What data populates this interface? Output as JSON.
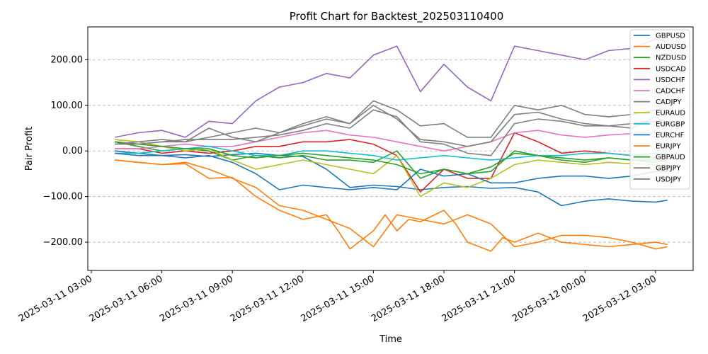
{
  "chart_data": {
    "type": "line",
    "title": "Profit Chart for Backtest_202503110400",
    "xlabel": "Time",
    "ylabel": "Pair Profit",
    "x_start": "2025-03-11 03:00",
    "x_ticks": [
      "2025-03-11 03:00",
      "2025-03-11 06:00",
      "2025-03-11 09:00",
      "2025-03-11 12:00",
      "2025-03-11 15:00",
      "2025-03-11 18:00",
      "2025-03-11 21:00",
      "2025-03-12 00:00",
      "2025-03-12 03:00"
    ],
    "x_tick_hours": [
      0,
      3,
      6,
      9,
      12,
      15,
      18,
      21,
      24
    ],
    "xlim_hours": [
      -0.15,
      25.6
    ],
    "y_ticks": [
      -200,
      -100,
      0,
      100,
      200
    ],
    "y_tick_labels": [
      "−200.00",
      "−100.00",
      "0.00",
      "100.00",
      "200.00"
    ],
    "ylim": [
      -262,
      272
    ],
    "grid": "y-dashed",
    "legend_position": "top-right",
    "series": [
      {
        "name": "GBPUSD",
        "color": "#1f77b4",
        "x": [
          1,
          2,
          3,
          4,
          5,
          6,
          7,
          8,
          9,
          10,
          11,
          12,
          13,
          14,
          15,
          16,
          17,
          18,
          19,
          20,
          21,
          22,
          23,
          24,
          24.5
        ],
        "values": [
          0,
          -5,
          -10,
          -8,
          -12,
          -8,
          -5,
          -10,
          -12,
          -40,
          -80,
          -75,
          -78,
          -85,
          -80,
          -78,
          -82,
          -80,
          -90,
          -120,
          -110,
          -105,
          -110,
          -112,
          -108
        ]
      },
      {
        "name": "AUDUSD",
        "color": "#ff7f0e",
        "x": [
          1,
          2,
          3,
          4,
          5,
          6,
          7,
          8,
          9,
          10,
          10.5,
          11,
          12,
          12.5,
          13,
          13.5,
          14,
          15,
          15.5,
          16,
          17,
          17.5,
          18,
          19,
          20,
          21,
          22,
          23,
          24,
          24.5
        ],
        "values": [
          -20,
          -25,
          -30,
          -28,
          -60,
          -58,
          -100,
          -130,
          -150,
          -140,
          -175,
          -215,
          -175,
          -140,
          -175,
          -150,
          -155,
          -130,
          -160,
          -200,
          -220,
          -190,
          -200,
          -180,
          -200,
          -205,
          -210,
          -205,
          -200,
          -205
        ]
      },
      {
        "name": "NZDUSD",
        "color": "#2ca02c",
        "x": [
          1,
          2,
          3,
          4,
          5,
          6,
          7,
          8,
          9,
          10,
          11,
          12,
          13,
          14,
          15,
          16,
          17,
          18,
          19,
          20,
          21,
          22,
          23,
          24,
          24.5
        ],
        "values": [
          20,
          10,
          0,
          5,
          0,
          -20,
          -10,
          -15,
          -10,
          -20,
          -20,
          -25,
          0,
          -60,
          -40,
          -50,
          -35,
          -5,
          -10,
          -20,
          -25,
          -15,
          -20,
          -25,
          -20
        ]
      },
      {
        "name": "USDCAD",
        "color": "#d62728",
        "x": [
          1,
          2,
          3,
          4,
          5,
          6,
          7,
          8,
          9,
          10,
          11,
          12,
          13,
          14,
          15,
          16,
          17,
          18,
          19,
          20,
          21,
          22,
          23,
          24,
          24.5
        ],
        "values": [
          5,
          5,
          -5,
          0,
          -5,
          0,
          10,
          10,
          20,
          20,
          25,
          15,
          -10,
          -90,
          -40,
          -60,
          -60,
          40,
          20,
          -5,
          0,
          -5,
          -10,
          -15,
          -10
        ]
      },
      {
        "name": "USDCHF",
        "color": "#9467bd",
        "x": [
          1,
          2,
          3,
          4,
          5,
          6,
          7,
          8,
          9,
          10,
          11,
          12,
          13,
          14,
          15,
          16,
          17,
          18,
          19,
          20,
          21,
          22,
          23,
          24,
          24.5
        ],
        "values": [
          30,
          40,
          45,
          30,
          65,
          60,
          110,
          140,
          150,
          170,
          160,
          210,
          230,
          130,
          190,
          140,
          110,
          230,
          220,
          210,
          200,
          220,
          225,
          245,
          240
        ]
      },
      {
        "name": "CADCHF",
        "color": "#e377c2",
        "x": [
          1,
          2,
          3,
          4,
          5,
          6,
          7,
          8,
          9,
          10,
          11,
          12,
          13,
          14,
          15,
          16,
          17,
          18,
          19,
          20,
          21,
          22,
          23,
          24,
          24.5
        ],
        "values": [
          5,
          5,
          10,
          15,
          10,
          10,
          20,
          30,
          40,
          45,
          35,
          30,
          20,
          10,
          0,
          10,
          20,
          40,
          45,
          35,
          30,
          35,
          38,
          40,
          40
        ]
      },
      {
        "name": "CADJPY",
        "color": "#7f7f7f",
        "x": [
          1,
          2,
          3,
          4,
          5,
          6,
          7,
          8,
          9,
          10,
          11,
          12,
          13,
          14,
          15,
          16,
          17,
          18,
          19,
          20,
          21,
          22,
          23,
          24,
          24.5
        ],
        "values": [
          20,
          15,
          20,
          20,
          50,
          30,
          20,
          40,
          60,
          75,
          60,
          110,
          90,
          55,
          60,
          30,
          30,
          100,
          90,
          100,
          80,
          75,
          80,
          90,
          95
        ]
      },
      {
        "name": "EURAUD",
        "color": "#bcbd22",
        "x": [
          1,
          2,
          3,
          4,
          5,
          6,
          7,
          8,
          9,
          10,
          11,
          12,
          13,
          14,
          15,
          16,
          17,
          18,
          19,
          20,
          21,
          22,
          23,
          24,
          24.5
        ],
        "values": [
          25,
          20,
          10,
          0,
          5,
          -20,
          -40,
          -30,
          -20,
          -30,
          -40,
          -50,
          -10,
          -100,
          -70,
          -80,
          -60,
          -30,
          -20,
          -25,
          -30,
          -25,
          -28,
          -30,
          -32
        ]
      },
      {
        "name": "EURGBP",
        "color": "#17becf",
        "x": [
          1,
          2,
          3,
          4,
          5,
          6,
          7,
          8,
          9,
          10,
          11,
          12,
          13,
          14,
          15,
          16,
          17,
          18,
          19,
          20,
          21,
          22,
          23,
          24,
          24.5
        ],
        "values": [
          -5,
          -5,
          0,
          5,
          10,
          0,
          -10,
          -10,
          0,
          0,
          -5,
          -10,
          -20,
          -15,
          -10,
          -15,
          -20,
          -15,
          -10,
          -10,
          -5,
          -5,
          -10,
          -5,
          -5
        ]
      },
      {
        "name": "EURCHF",
        "color": "#1f77b4",
        "x": [
          1,
          2,
          3,
          4,
          5,
          6,
          7,
          8,
          9,
          10,
          11,
          12,
          13,
          14,
          15,
          16,
          17,
          18,
          19,
          20,
          21,
          22,
          23,
          24,
          24.5
        ],
        "values": [
          -5,
          -10,
          -10,
          -15,
          -10,
          -25,
          -50,
          -85,
          -75,
          -80,
          -85,
          -80,
          -85,
          -40,
          -55,
          -50,
          -70,
          -70,
          -60,
          -55,
          -55,
          -60,
          -55,
          -45,
          -45
        ]
      },
      {
        "name": "EURJPY",
        "color": "#ff7f0e",
        "x": [
          1,
          2,
          3,
          4,
          5,
          6,
          7,
          8,
          9,
          10,
          11,
          12,
          13,
          14,
          15,
          16,
          17,
          18,
          19,
          20,
          21,
          22,
          23,
          24,
          24.5
        ],
        "values": [
          -20,
          -25,
          -30,
          -25,
          -40,
          -60,
          -80,
          -120,
          -130,
          -150,
          -170,
          -210,
          -140,
          -150,
          -160,
          -140,
          -160,
          -210,
          -200,
          -185,
          -185,
          -190,
          -200,
          -215,
          -210
        ]
      },
      {
        "name": "GBPAUD",
        "color": "#2ca02c",
        "x": [
          1,
          2,
          3,
          4,
          5,
          6,
          7,
          8,
          9,
          10,
          11,
          12,
          13,
          14,
          15,
          16,
          17,
          18,
          19,
          20,
          21,
          22,
          23,
          24,
          24.5
        ],
        "values": [
          20,
          15,
          10,
          5,
          5,
          -10,
          -15,
          -10,
          -5,
          -10,
          -15,
          -20,
          -30,
          -50,
          -40,
          -50,
          -45,
          0,
          -10,
          -15,
          -20,
          -15,
          -20,
          -20,
          -20
        ]
      },
      {
        "name": "GBPJPY",
        "color": "#7f7f7f",
        "x": [
          1,
          2,
          3,
          4,
          5,
          6,
          7,
          8,
          9,
          10,
          11,
          12,
          13,
          14,
          15,
          16,
          17,
          18,
          19,
          20,
          21,
          22,
          23,
          24,
          24.5
        ],
        "values": [
          15,
          20,
          25,
          20,
          30,
          40,
          50,
          40,
          55,
          70,
          60,
          100,
          70,
          25,
          20,
          10,
          20,
          80,
          85,
          70,
          60,
          55,
          50,
          75,
          60
        ]
      },
      {
        "name": "USDJPY",
        "color": "#7f7f7f",
        "x": [
          1,
          2,
          3,
          4,
          5,
          6,
          7,
          8,
          9,
          10,
          11,
          12,
          13,
          14,
          15,
          16,
          17,
          18,
          19,
          20,
          21,
          22,
          23,
          24,
          24.5
        ],
        "values": [
          15,
          15,
          20,
          25,
          25,
          25,
          30,
          35,
          45,
          60,
          50,
          90,
          75,
          20,
          15,
          -5,
          -10,
          60,
          70,
          65,
          55,
          55,
          60,
          65,
          60
        ]
      }
    ]
  }
}
